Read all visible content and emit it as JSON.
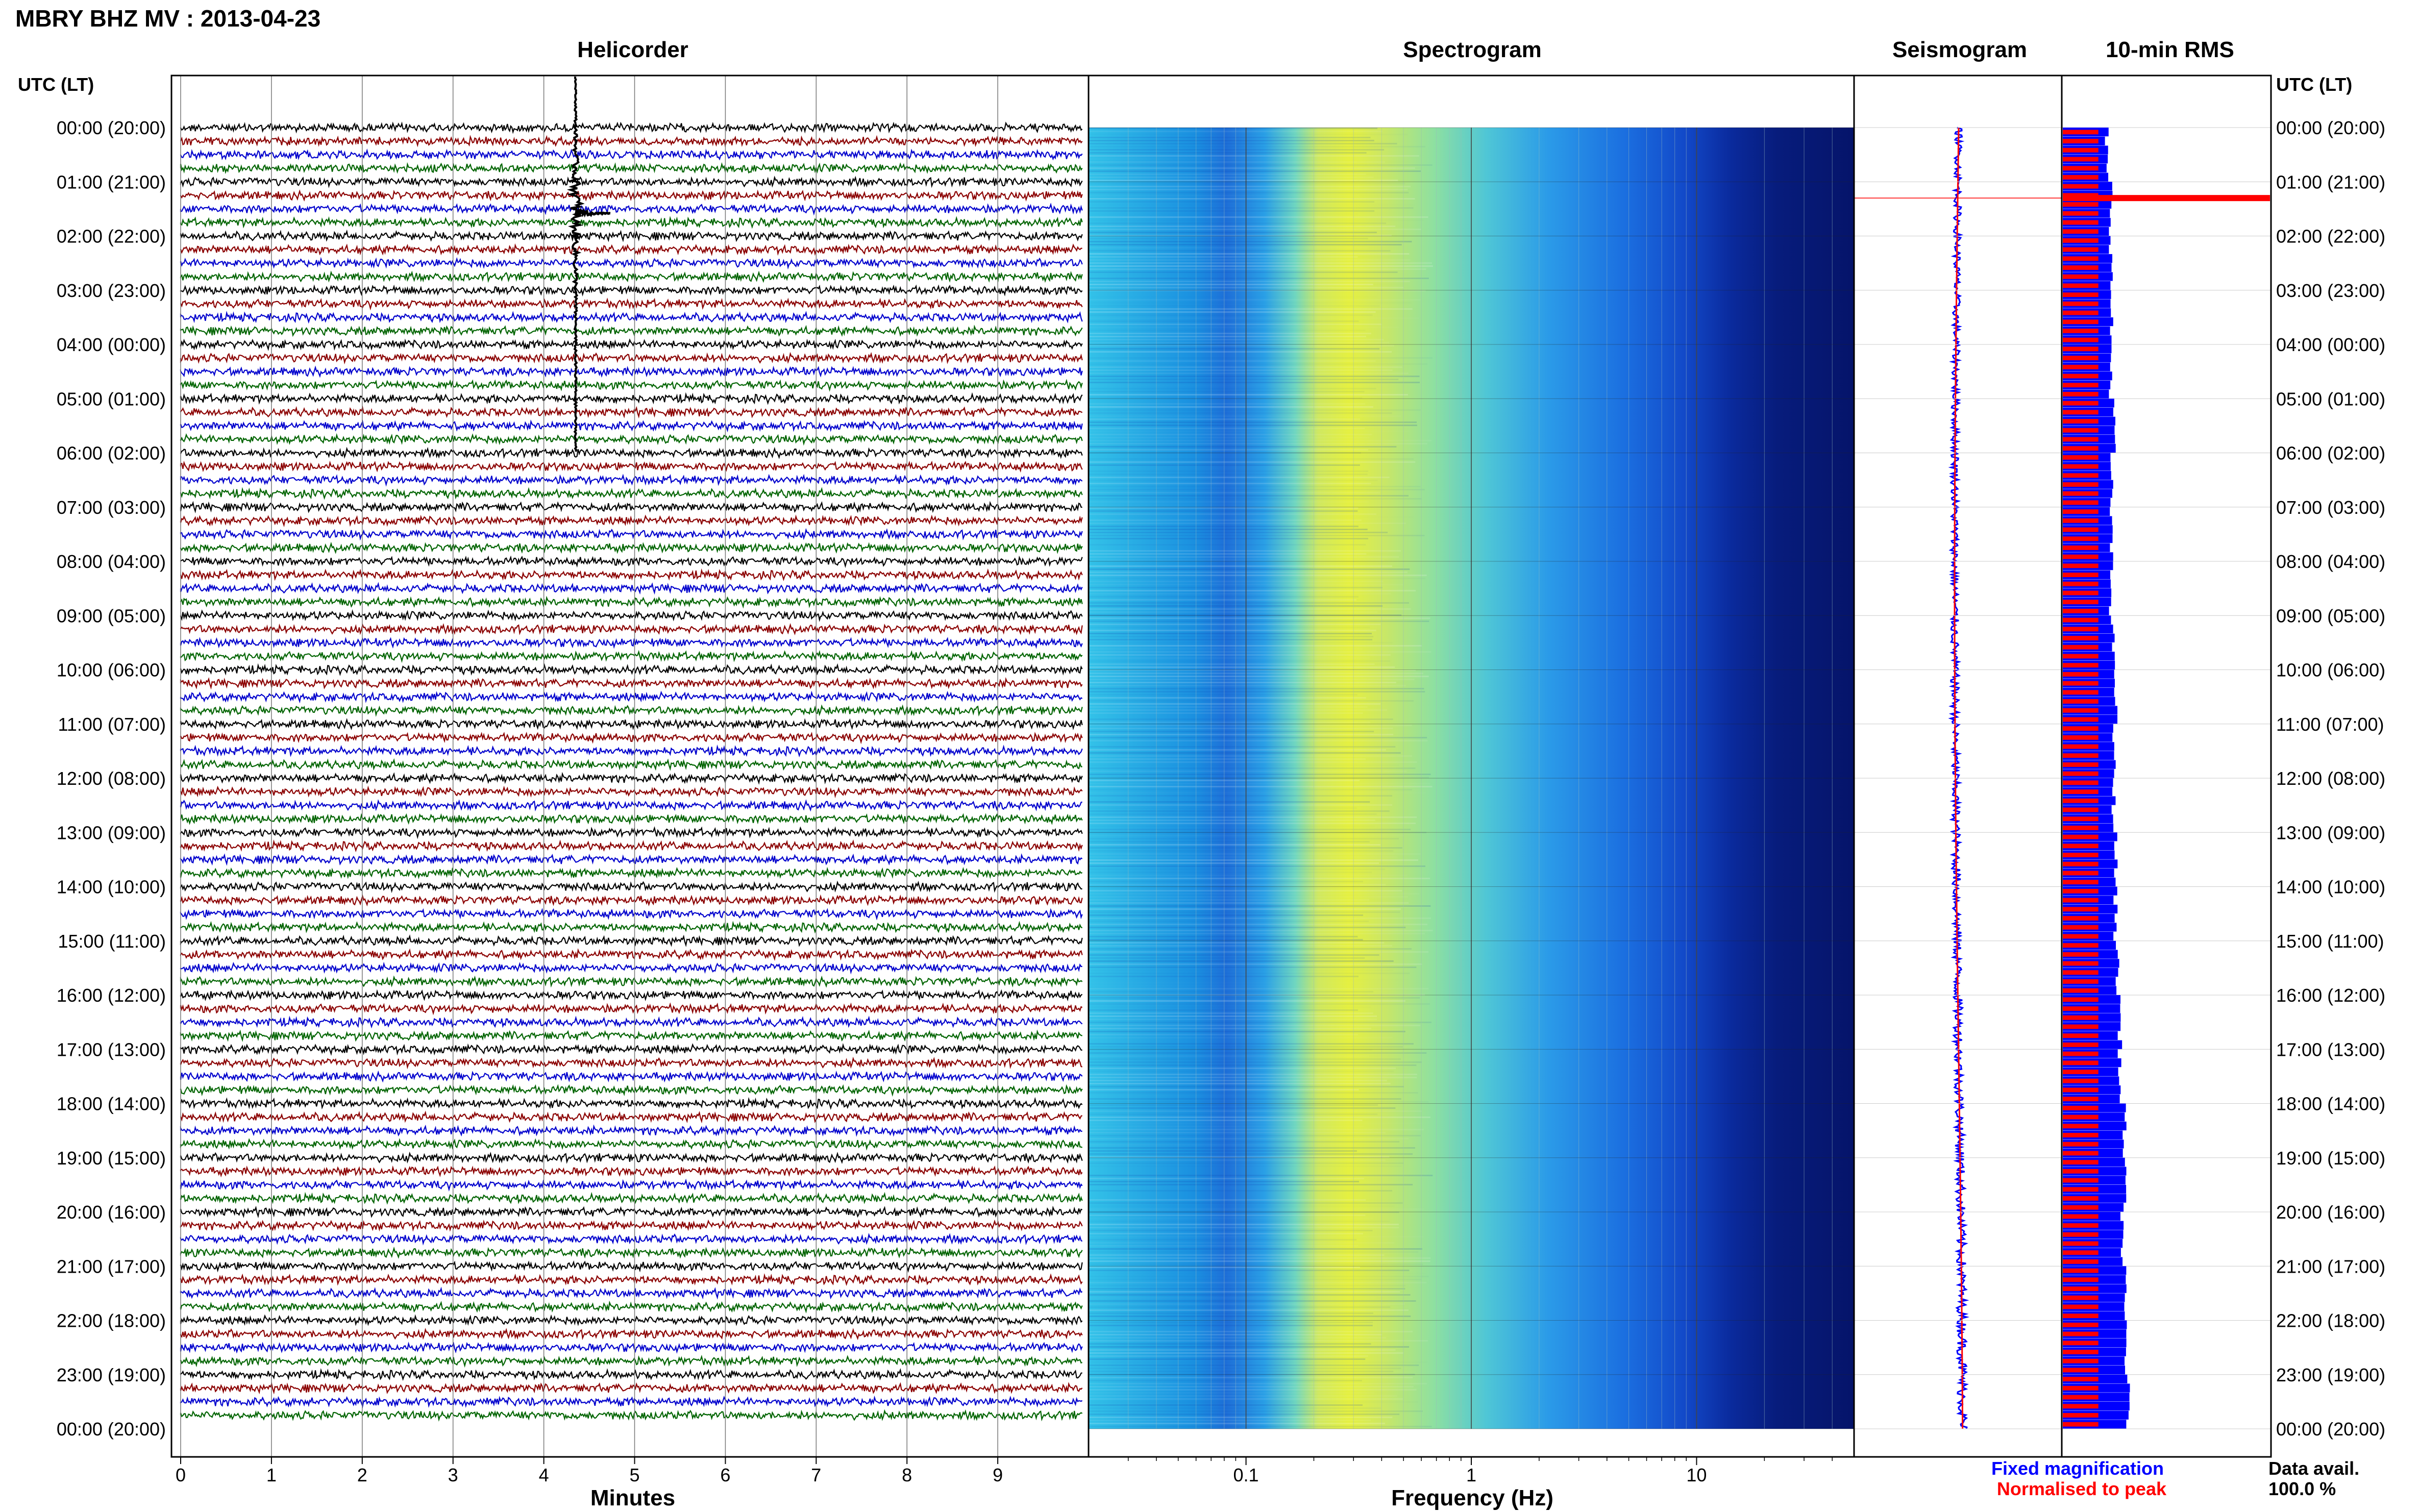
{
  "title": "MBRY BHZ MV : 2013-04-23",
  "panels": {
    "helicorder": {
      "title": "Helicorder",
      "xlabel": "Minutes",
      "ticks": [
        "0",
        "1",
        "2",
        "3",
        "4",
        "5",
        "6",
        "7",
        "8",
        "9"
      ]
    },
    "spectrogram": {
      "title": "Spectrogram",
      "xlabel": "Frequency (Hz)",
      "ticks": [
        "0.1",
        "1",
        "10"
      ]
    },
    "seismogram": {
      "title": "Seismogram"
    },
    "rms": {
      "title": "10-min RMS"
    }
  },
  "time_axis": {
    "header": "UTC (LT)",
    "labels": [
      "00:00 (20:00)",
      "01:00 (21:00)",
      "02:00 (22:00)",
      "03:00 (23:00)",
      "04:00 (00:00)",
      "05:00 (01:00)",
      "06:00 (02:00)",
      "07:00 (03:00)",
      "08:00 (04:00)",
      "09:00 (05:00)",
      "10:00 (06:00)",
      "11:00 (07:00)",
      "12:00 (08:00)",
      "13:00 (09:00)",
      "14:00 (10:00)",
      "15:00 (11:00)",
      "16:00 (12:00)",
      "17:00 (13:00)",
      "18:00 (14:00)",
      "19:00 (15:00)",
      "20:00 (16:00)",
      "21:00 (17:00)",
      "22:00 (18:00)",
      "23:00 (19:00)",
      "00:00 (20:00)"
    ]
  },
  "legend": {
    "fixed": "Fixed magnification",
    "normalised": "Normalised to peak"
  },
  "availability": {
    "label": "Data avail.",
    "value": "100.0 %"
  },
  "colors": {
    "fixed": "#0000ff",
    "normalised": "#ff0000",
    "trace_cycle": [
      "#000000",
      "#8b0000",
      "#0000cd",
      "#006400"
    ]
  },
  "chart_data": [
    {
      "type": "line",
      "title": "Helicorder",
      "xlabel": "Minutes",
      "xlim": [
        0,
        10
      ],
      "rows": 96,
      "row_minutes": 15,
      "event": {
        "hour_utc": 1.3,
        "minute": 4.35,
        "amplitude": "saturated"
      }
    },
    {
      "type": "heatmap",
      "title": "Spectrogram",
      "xlabel": "Frequency (Hz)",
      "x_scale": "log",
      "xlim": [
        0.02,
        50
      ],
      "y": "time (UTC) 00:00-24:00",
      "band_peak_hz": [
        0.2,
        0.5
      ]
    },
    {
      "type": "line",
      "title": "Seismogram",
      "ylim_hours": [
        0,
        24
      ],
      "series": [
        {
          "name": "Fixed magnification"
        },
        {
          "name": "Normalised to peak"
        }
      ]
    },
    {
      "type": "bar",
      "title": "10-min RMS",
      "bins": 144,
      "bin_minutes": 10,
      "series": [
        {
          "name": "Fixed magnification",
          "hourly_relative": [
            0.5,
            0.55,
            0.55,
            0.55,
            0.55,
            0.58,
            0.55,
            0.55,
            0.55,
            0.57,
            0.6,
            0.58,
            0.58,
            0.6,
            0.6,
            0.62,
            0.65,
            0.65,
            0.7,
            0.7,
            0.68,
            0.7,
            0.72,
            0.74
          ]
        },
        {
          "name": "Normalised to peak",
          "peak_hour_utc": 1.3
        }
      ]
    }
  ]
}
